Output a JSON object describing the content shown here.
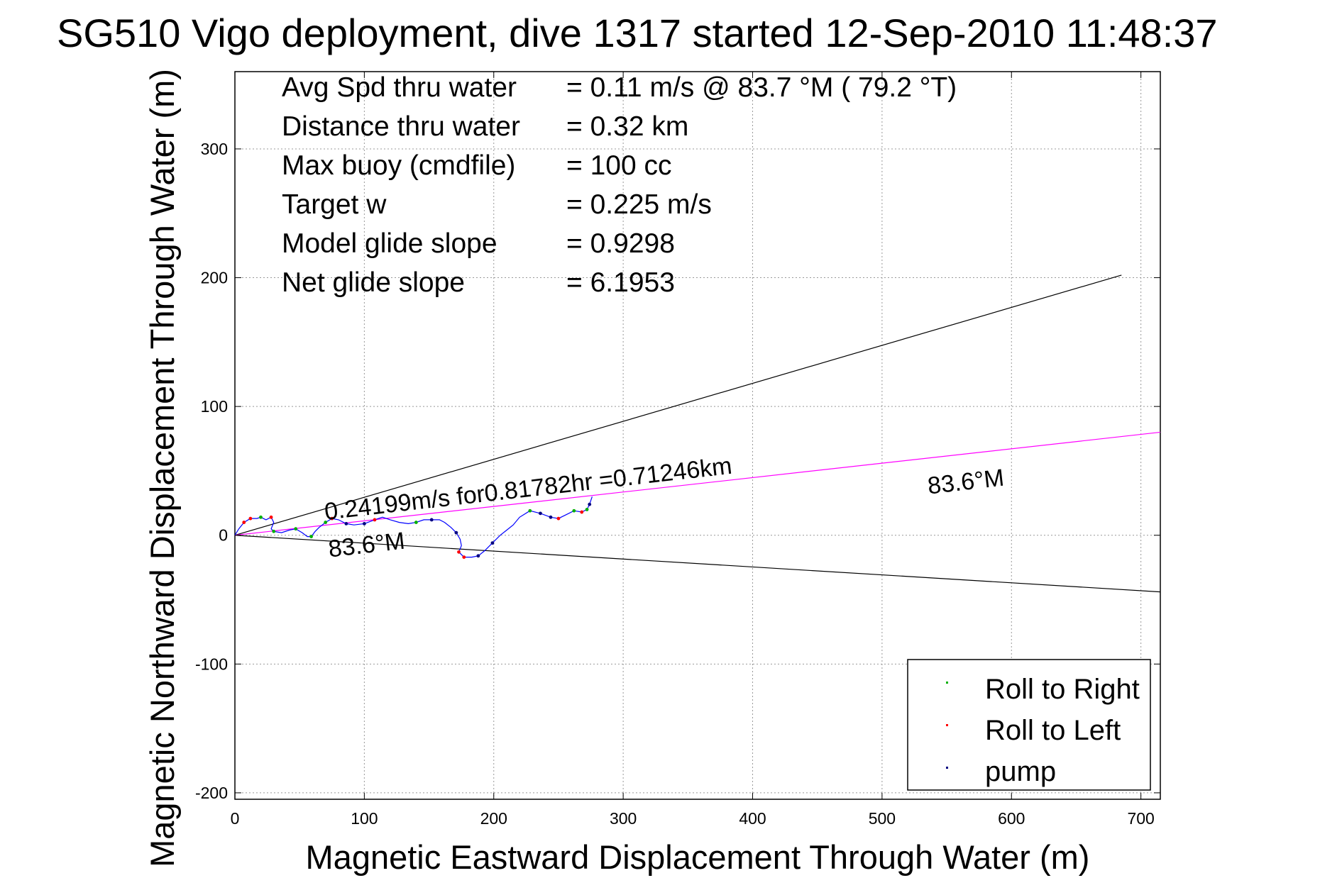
{
  "chart_data": {
    "type": "line",
    "title": "SG510 Vigo deployment, dive 1317 started 12-Sep-2010 11:48:37",
    "xlabel": "Magnetic Eastward Displacement Through Water (m)",
    "ylabel": "Magnetic Northward Displacement Through Water (m)",
    "xlim": [
      0,
      715
    ],
    "ylim": [
      -205,
      360
    ],
    "xticks": [
      0,
      100,
      200,
      300,
      400,
      500,
      600,
      700
    ],
    "yticks": [
      -200,
      -100,
      0,
      100,
      200,
      300
    ],
    "grid": true,
    "info_lines": [
      {
        "label": "Avg Spd thru water",
        "value": "=  0.11 m/s @  83.7 °M ( 79.2 °T)"
      },
      {
        "label": "Distance thru water",
        "value": "=  0.32 km"
      },
      {
        "label": "Max buoy (cmdfile)",
        "value": "= 100 cc"
      },
      {
        "label": "Target w",
        "value": "= 0.225 m/s"
      },
      {
        "label": "Model glide slope",
        "value": "= 0.9298"
      },
      {
        "label": "Net glide slope",
        "value": "= 6.1953"
      }
    ],
    "reference_lines": [
      {
        "from": [
          0,
          0
        ],
        "to": [
          685,
          202
        ],
        "color": "#000000"
      },
      {
        "from": [
          0,
          0
        ],
        "to": [
          715,
          -44
        ],
        "color": "#000000"
      },
      {
        "from": [
          0,
          0
        ],
        "to": [
          715,
          80
        ],
        "color": "#ff00ff"
      }
    ],
    "annotations": [
      {
        "text": "0.24199m/s for0.81782hr =0.71246km",
        "x": 70,
        "y": 12,
        "angle": -6.5
      },
      {
        "text": "83.6°M",
        "x": 73,
        "y": -17,
        "angle": -6.5
      },
      {
        "text": "83.6°M",
        "x": 536,
        "y": 32,
        "angle": -6.5
      }
    ],
    "track": {
      "color": "#0000ff",
      "points": [
        [
          0,
          0
        ],
        [
          3,
          5
        ],
        [
          7,
          10
        ],
        [
          12,
          13
        ],
        [
          17,
          13
        ],
        [
          20,
          14
        ],
        [
          24,
          12
        ],
        [
          28,
          14
        ],
        [
          30,
          10
        ],
        [
          28,
          5
        ],
        [
          30,
          3
        ],
        [
          36,
          2
        ],
        [
          42,
          4
        ],
        [
          47,
          5
        ],
        [
          52,
          2
        ],
        [
          56,
          -1
        ],
        [
          59,
          -1
        ],
        [
          62,
          3
        ],
        [
          65,
          6
        ],
        [
          70,
          10
        ],
        [
          75,
          13
        ],
        [
          80,
          12
        ],
        [
          86,
          9
        ],
        [
          92,
          8
        ],
        [
          100,
          9
        ],
        [
          108,
          12
        ],
        [
          114,
          14
        ],
        [
          120,
          12
        ],
        [
          127,
          10
        ],
        [
          134,
          9
        ],
        [
          140,
          10
        ],
        [
          146,
          12
        ],
        [
          152,
          12
        ],
        [
          158,
          12
        ],
        [
          162,
          10
        ],
        [
          167,
          6
        ],
        [
          171,
          2
        ],
        [
          174,
          -3
        ],
        [
          175,
          -8
        ],
        [
          173,
          -13
        ],
        [
          177,
          -17
        ],
        [
          183,
          -17
        ],
        [
          188,
          -16
        ],
        [
          193,
          -12
        ],
        [
          199,
          -6
        ],
        [
          205,
          0
        ],
        [
          210,
          4
        ],
        [
          215,
          8
        ],
        [
          220,
          14
        ],
        [
          228,
          19
        ],
        [
          236,
          17
        ],
        [
          244,
          14
        ],
        [
          250,
          13
        ],
        [
          256,
          16
        ],
        [
          262,
          19
        ],
        [
          268,
          18
        ],
        [
          272,
          20
        ],
        [
          274,
          24
        ],
        [
          276,
          30
        ]
      ]
    },
    "series": [
      {
        "name": "Roll to Right",
        "color": "#00b000",
        "points": [
          [
            20,
            14
          ],
          [
            30,
            3
          ],
          [
            47,
            5
          ],
          [
            59,
            -1
          ],
          [
            70,
            10
          ],
          [
            140,
            10
          ],
          [
            228,
            19
          ],
          [
            262,
            19
          ],
          [
            272,
            20
          ]
        ]
      },
      {
        "name": "Roll to Left",
        "color": "#ff0000",
        "points": [
          [
            7,
            10
          ],
          [
            12,
            13
          ],
          [
            28,
            14
          ],
          [
            75,
            13
          ],
          [
            108,
            12
          ],
          [
            173,
            -13
          ],
          [
            177,
            -17
          ],
          [
            250,
            13
          ],
          [
            268,
            18
          ]
        ]
      },
      {
        "name": "pump",
        "color": "#000080",
        "points": [
          [
            86,
            9
          ],
          [
            100,
            9
          ],
          [
            152,
            12
          ],
          [
            171,
            2
          ],
          [
            188,
            -16
          ],
          [
            199,
            -6
          ],
          [
            236,
            17
          ],
          [
            244,
            14
          ],
          [
            274,
            24
          ]
        ]
      }
    ]
  }
}
